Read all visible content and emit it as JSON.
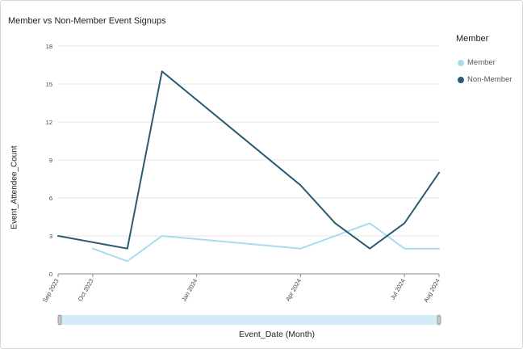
{
  "title": "Member vs Non-Member Event Signups",
  "legend": {
    "title": "Member",
    "items": [
      {
        "label": "Member",
        "color": "#a8dcf0"
      },
      {
        "label": "Non-Member",
        "color": "#2c5a72"
      }
    ]
  },
  "chart_data": {
    "type": "line",
    "title": "Member vs Non-Member Event Signups",
    "xlabel": "Event_Date (Month)",
    "ylabel": "Event_Attendee_Count",
    "ylim": [
      0,
      18
    ],
    "yticks": [
      0,
      3,
      6,
      9,
      12,
      15,
      18
    ],
    "xlim": [
      0,
      11
    ],
    "xticks": [
      {
        "x": 0,
        "label": "Sep 2023"
      },
      {
        "x": 1,
        "label": "Oct 2023"
      },
      {
        "x": 4,
        "label": "Jan 2024"
      },
      {
        "x": 7,
        "label": "Apr 2024"
      },
      {
        "x": 10,
        "label": "Jul 2024"
      },
      {
        "x": 11,
        "label": "Aug 2024"
      }
    ],
    "grid": true,
    "legend_position": "right",
    "series": [
      {
        "name": "Member",
        "color": "#a8dcf0",
        "points": [
          [
            1,
            2
          ],
          [
            2,
            1
          ],
          [
            3,
            3
          ],
          [
            7,
            2
          ],
          [
            9,
            4
          ],
          [
            10,
            2
          ],
          [
            11,
            2
          ]
        ]
      },
      {
        "name": "Non-Member",
        "color": "#2c5a72",
        "points": [
          [
            0,
            3
          ],
          [
            2,
            2
          ],
          [
            3,
            16
          ],
          [
            7,
            7
          ],
          [
            8,
            4
          ],
          [
            9,
            2
          ],
          [
            10,
            4
          ],
          [
            11,
            8
          ]
        ]
      }
    ]
  }
}
